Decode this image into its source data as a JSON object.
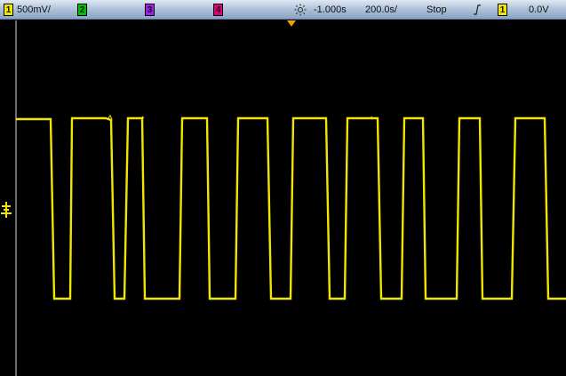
{
  "status_bar": {
    "channel1": {
      "number": "1",
      "scale": "500",
      "scale_unit": "mV/",
      "color": "#f2e600"
    },
    "channel2": {
      "number": "2",
      "color": "#00c000"
    },
    "channel3": {
      "number": "3",
      "color": "#a020f0"
    },
    "channel4": {
      "number": "4",
      "color": "#e0007a"
    },
    "acquire_icon": "brightness-icon",
    "time_offset": "-1.000s",
    "time_scale": "200.0s/",
    "run_state": "Stop",
    "trigger_icon": "rising-edge-trigger-icon",
    "trigger_channel": "1",
    "trigger_level": "0.0V"
  },
  "waveform": {
    "color": "#f2e600",
    "shape": "square",
    "high_level": "high",
    "low_level": "low"
  }
}
